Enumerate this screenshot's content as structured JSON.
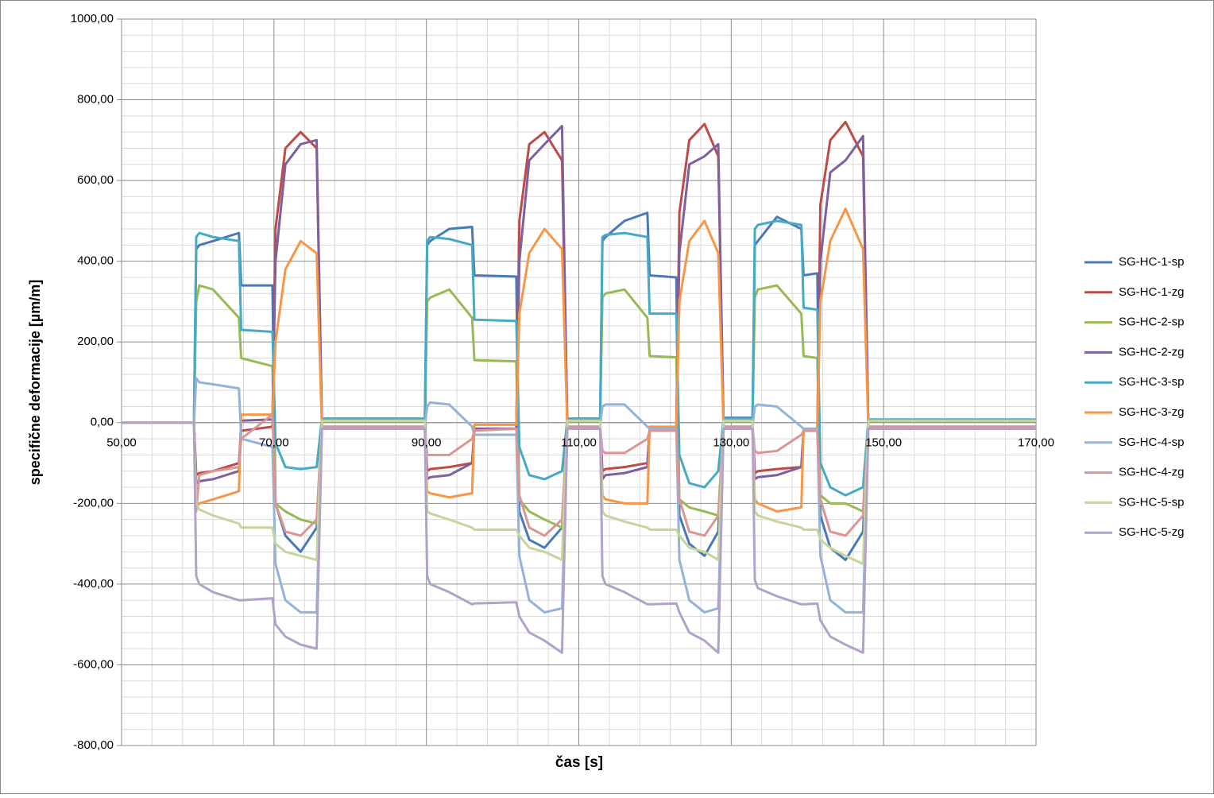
{
  "chart_data": {
    "type": "line",
    "xlabel": "čas [s]",
    "ylabel": "specifične deformacije [µm/m]",
    "x": [
      50,
      59.5,
      59.8,
      60.2,
      62,
      65.4,
      65.7,
      69.8,
      70.2,
      71.5,
      73.5,
      75.6,
      76.3,
      89.8,
      90.1,
      90.5,
      93,
      96,
      96.3,
      101.8,
      102.2,
      103.5,
      105.5,
      107.8,
      108.5,
      112.8,
      113.1,
      113.5,
      116,
      119,
      119.3,
      122.8,
      123.2,
      124.5,
      126.5,
      128.3,
      129,
      132.8,
      133.1,
      133.5,
      136,
      139.2,
      139.5,
      141.3,
      141.7,
      143,
      145,
      147.3,
      148,
      170
    ],
    "xlim": [
      50,
      170
    ],
    "xticks": [
      {
        "value": 50,
        "label": "50,00"
      },
      {
        "value": 70,
        "label": "70,00"
      },
      {
        "value": 90,
        "label": "90,00"
      },
      {
        "value": 110,
        "label": "110,00"
      },
      {
        "value": 130,
        "label": "130,00"
      },
      {
        "value": 150,
        "label": "150,00"
      },
      {
        "value": 170,
        "label": "170,00"
      }
    ],
    "ylim": [
      -800,
      1000
    ],
    "yticks": [
      {
        "value": -800,
        "label": "-800,00"
      },
      {
        "value": -600,
        "label": "-600,00"
      },
      {
        "value": -400,
        "label": "-400,00"
      },
      {
        "value": -200,
        "label": "-200,00"
      },
      {
        "value": 0,
        "label": "0,00"
      },
      {
        "value": 200,
        "label": "200,00"
      },
      {
        "value": 400,
        "label": "400,00"
      },
      {
        "value": 600,
        "label": "600,00"
      },
      {
        "value": 800,
        "label": "800,00"
      },
      {
        "value": 1000,
        "label": "1000,00"
      }
    ],
    "grid": true,
    "legend": "right",
    "series": [
      {
        "name": "SG-HC-1-sp",
        "color": "#4a7ab5",
        "values": [
          0,
          0,
          430,
          440,
          450,
          470,
          340,
          340,
          -200,
          -280,
          -320,
          -260,
          10,
          10,
          440,
          450,
          480,
          485,
          365,
          362,
          -220,
          -290,
          -310,
          -260,
          10,
          10,
          450,
          460,
          500,
          520,
          365,
          360,
          -230,
          -300,
          -330,
          -270,
          12,
          12,
          440,
          450,
          510,
          480,
          365,
          370,
          -230,
          -310,
          -340,
          -270,
          5,
          5
        ]
      },
      {
        "name": "SG-HC-1-zg",
        "color": "#be4b48",
        "values": [
          0,
          0,
          -130,
          -125,
          -120,
          -100,
          -20,
          -10,
          480,
          680,
          720,
          680,
          -10,
          -10,
          -120,
          -115,
          -110,
          -100,
          -15,
          -15,
          500,
          690,
          720,
          650,
          -10,
          -10,
          -120,
          -115,
          -110,
          -100,
          -15,
          -12,
          520,
          700,
          740,
          660,
          -10,
          -10,
          -125,
          -120,
          -115,
          -110,
          -20,
          -20,
          540,
          700,
          745,
          660,
          -10,
          -10
        ]
      },
      {
        "name": "SG-HC-2-sp",
        "color": "#98b954",
        "values": [
          0,
          0,
          300,
          340,
          330,
          260,
          160,
          140,
          -200,
          -220,
          -240,
          -250,
          5,
          5,
          300,
          310,
          330,
          260,
          155,
          152,
          -190,
          -220,
          -240,
          -260,
          5,
          5,
          310,
          320,
          330,
          260,
          165,
          162,
          -190,
          -210,
          -220,
          -230,
          5,
          5,
          310,
          330,
          340,
          270,
          165,
          160,
          -180,
          -200,
          -200,
          -220,
          5,
          5
        ]
      },
      {
        "name": "SG-HC-2-zg",
        "color": "#7d60a0",
        "values": [
          0,
          0,
          -150,
          -145,
          -140,
          -120,
          5,
          8,
          400,
          640,
          690,
          700,
          -15,
          -15,
          -140,
          -135,
          -130,
          -100,
          -15,
          -15,
          400,
          650,
          690,
          735,
          -15,
          -15,
          -140,
          -130,
          -125,
          -110,
          -15,
          -15,
          420,
          640,
          660,
          690,
          -15,
          -15,
          -140,
          -135,
          -130,
          -110,
          -20,
          -20,
          400,
          620,
          650,
          710,
          -15,
          -15
        ]
      },
      {
        "name": "SG-HC-3-sp",
        "color": "#46aac5",
        "values": [
          0,
          0,
          460,
          470,
          460,
          450,
          230,
          225,
          -50,
          -110,
          -115,
          -110,
          10,
          10,
          450,
          460,
          455,
          440,
          255,
          252,
          -60,
          -130,
          -140,
          -120,
          10,
          10,
          460,
          465,
          470,
          460,
          270,
          270,
          -80,
          -150,
          -160,
          -120,
          10,
          10,
          480,
          490,
          500,
          490,
          285,
          280,
          -100,
          -160,
          -180,
          -160,
          8,
          8
        ]
      },
      {
        "name": "SG-HC-3-zg",
        "color": "#f79646",
        "values": [
          0,
          0,
          -210,
          -200,
          -190,
          -170,
          20,
          20,
          200,
          380,
          450,
          420,
          -15,
          -15,
          -170,
          -175,
          -185,
          -175,
          -5,
          -5,
          270,
          420,
          480,
          430,
          -15,
          -15,
          -180,
          -190,
          -200,
          -200,
          -10,
          -10,
          300,
          450,
          500,
          420,
          -15,
          -15,
          -190,
          -200,
          -220,
          -210,
          -15,
          -15,
          300,
          450,
          530,
          430,
          -15,
          -15
        ]
      },
      {
        "name": "SG-HC-4-sp",
        "color": "#95b3d7",
        "values": [
          0,
          0,
          110,
          100,
          95,
          85,
          -40,
          -60,
          -350,
          -440,
          -470,
          -470,
          -10,
          -10,
          40,
          50,
          45,
          -10,
          -30,
          -30,
          -330,
          -440,
          -470,
          -460,
          -10,
          -10,
          40,
          45,
          45,
          -10,
          -15,
          -15,
          -340,
          -440,
          -470,
          -460,
          -10,
          -10,
          40,
          45,
          40,
          -10,
          -15,
          -15,
          -330,
          -440,
          -470,
          -470,
          -10,
          -10
        ]
      },
      {
        "name": "SG-HC-4-zg",
        "color": "#d99694",
        "values": [
          0,
          0,
          -220,
          -130,
          -120,
          -110,
          -40,
          20,
          -200,
          -270,
          -280,
          -240,
          -10,
          -10,
          -80,
          -80,
          -80,
          -40,
          -20,
          -15,
          -180,
          -260,
          -280,
          -240,
          -10,
          -10,
          -70,
          -75,
          -75,
          -40,
          -20,
          -20,
          -190,
          -270,
          -280,
          -230,
          -10,
          -10,
          -70,
          -75,
          -70,
          -30,
          -20,
          -20,
          -190,
          -270,
          -280,
          -230,
          -10,
          -10
        ]
      },
      {
        "name": "SG-HC-5-sp",
        "color": "#c3d69b",
        "values": [
          0,
          0,
          -200,
          -215,
          -230,
          -250,
          -260,
          -260,
          -300,
          -320,
          -330,
          -340,
          5,
          5,
          -220,
          -225,
          -240,
          -260,
          -265,
          -265,
          -280,
          -310,
          -320,
          -340,
          5,
          5,
          -220,
          -230,
          -245,
          -260,
          -265,
          -265,
          -280,
          -310,
          -320,
          -340,
          5,
          5,
          -220,
          -230,
          -245,
          -260,
          -265,
          -265,
          -290,
          -310,
          -330,
          -350,
          5,
          5
        ]
      },
      {
        "name": "SG-HC-5-zg",
        "color": "#b3a2c7",
        "values": [
          0,
          0,
          -380,
          -400,
          -420,
          -440,
          -440,
          -435,
          -500,
          -530,
          -550,
          -560,
          -15,
          -15,
          -380,
          -400,
          -420,
          -450,
          -448,
          -445,
          -480,
          -520,
          -540,
          -570,
          -15,
          -15,
          -380,
          -400,
          -420,
          -450,
          -450,
          -448,
          -470,
          -520,
          -540,
          -570,
          -15,
          -15,
          -390,
          -410,
          -430,
          -450,
          -450,
          -448,
          -490,
          -530,
          -550,
          -570,
          -15,
          -15
        ]
      }
    ]
  }
}
